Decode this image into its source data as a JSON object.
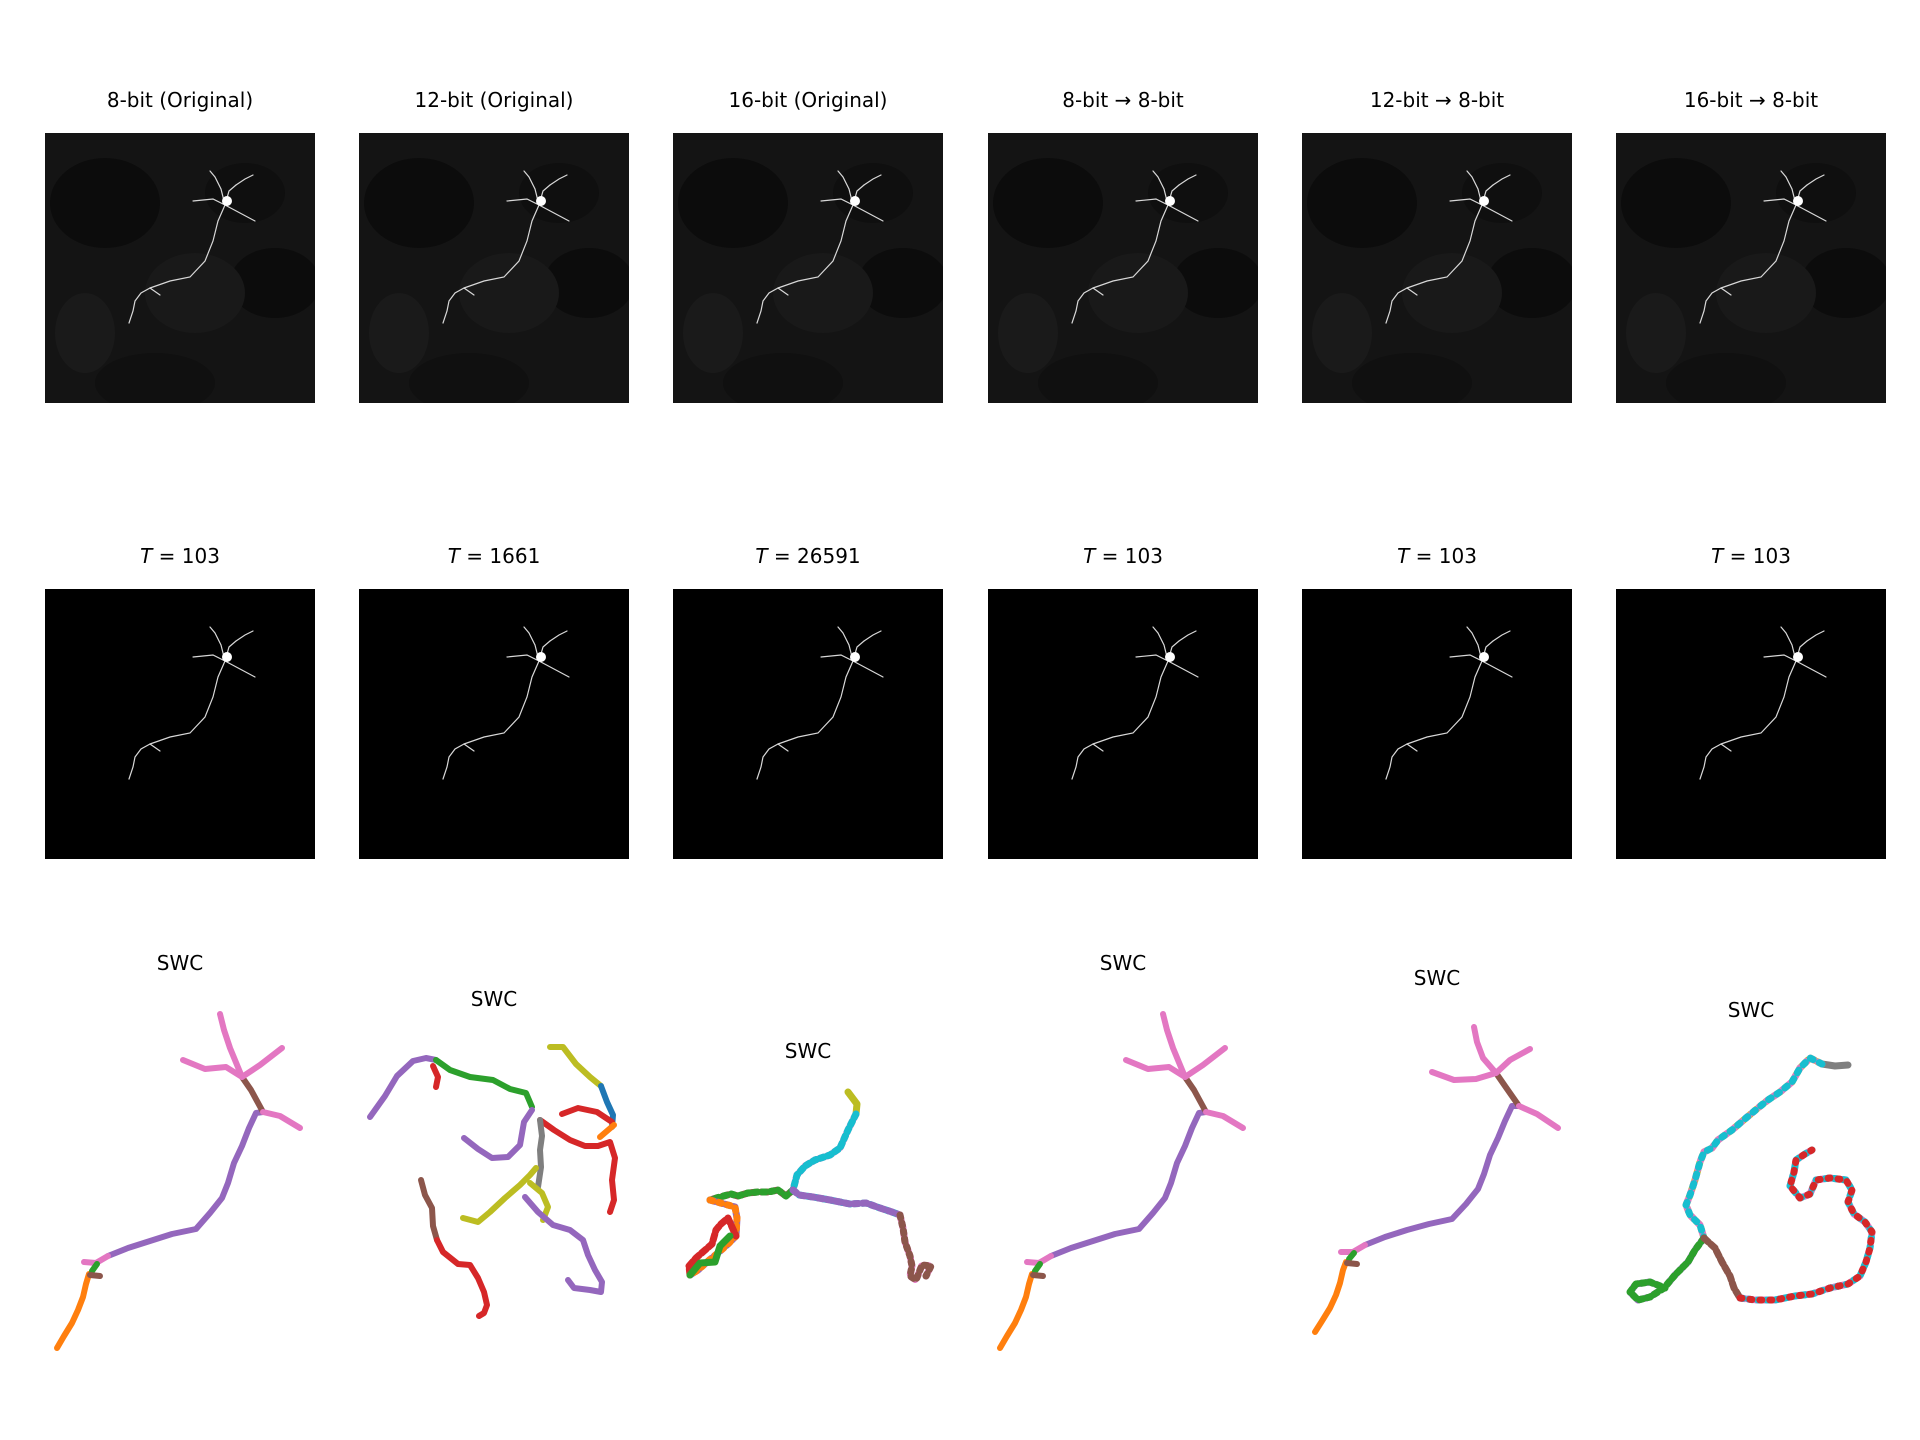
{
  "row1": {
    "titles": [
      "8-bit (Original)",
      "12-bit (Original)",
      "16-bit (Original)",
      "8-bit  → 8-bit",
      "12-bit  → 8-bit",
      "16-bit  → 8-bit"
    ]
  },
  "row2": {
    "thresholds": [
      {
        "symbol": "T",
        "eq": " = 103"
      },
      {
        "symbol": "T",
        "eq": " = 1661"
      },
      {
        "symbol": "T",
        "eq": " = 26591"
      },
      {
        "symbol": "T",
        "eq": " = 103"
      },
      {
        "symbol": "T",
        "eq": " = 103"
      },
      {
        "symbol": "T",
        "eq": " = 103"
      }
    ]
  },
  "row3": {
    "titles": [
      "SWC",
      "SWC",
      "SWC",
      "SWC",
      "SWC",
      "SWC"
    ]
  },
  "colors": {
    "orange": "#ff7f0e",
    "green": "#2ca02c",
    "red": "#d62728",
    "purple": "#9467bd",
    "brown": "#8c564b",
    "pink": "#e377c2",
    "gray": "#7f7f7f",
    "olive": "#bcbd22",
    "cyan": "#17becf",
    "blue": "#1f77b4"
  }
}
